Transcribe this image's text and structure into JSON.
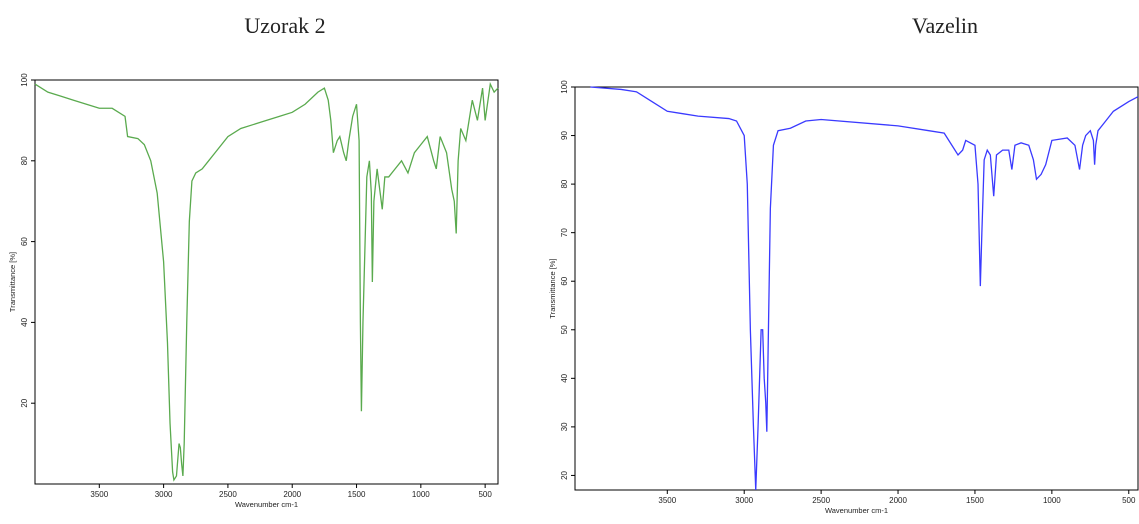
{
  "chart_data": [
    {
      "type": "line",
      "title": "Uzorak 2",
      "x_label": "Wavenumber cm-1",
      "y_label": "Transmittance [%]",
      "color": "#5aaa4e",
      "xlim": [
        4000,
        400
      ],
      "ylim": [
        0,
        100
      ],
      "xticks": [
        3500,
        3000,
        2500,
        2000,
        1500,
        1000,
        500
      ],
      "yticks": [
        20,
        40,
        60,
        80,
        100
      ],
      "x": [
        4000,
        3900,
        3800,
        3700,
        3600,
        3500,
        3400,
        3300,
        3280,
        3200,
        3150,
        3100,
        3050,
        3000,
        2970,
        2950,
        2930,
        2920,
        2900,
        2880,
        2870,
        2860,
        2850,
        2840,
        2820,
        2800,
        2780,
        2750,
        2700,
        2650,
        2600,
        2500,
        2400,
        2300,
        2200,
        2100,
        2000,
        1900,
        1800,
        1750,
        1720,
        1700,
        1680,
        1650,
        1630,
        1600,
        1580,
        1560,
        1530,
        1500,
        1480,
        1470,
        1462,
        1450,
        1420,
        1400,
        1385,
        1377,
        1365,
        1340,
        1300,
        1280,
        1250,
        1200,
        1150,
        1100,
        1050,
        1000,
        950,
        900,
        880,
        850,
        800,
        760,
        740,
        725,
        710,
        690,
        650,
        600,
        560,
        520,
        500,
        460,
        430,
        400
      ],
      "values": [
        99,
        97,
        96,
        95,
        94,
        93,
        93,
        91,
        86,
        85.5,
        84,
        80,
        72,
        55,
        35,
        15,
        3,
        1,
        2,
        10,
        9,
        5,
        2,
        10,
        40,
        65,
        75,
        77,
        78,
        80,
        82,
        86,
        88,
        89,
        90,
        91,
        92,
        94,
        97,
        98,
        95,
        90,
        82,
        85,
        86,
        82,
        80,
        85,
        91,
        94,
        85,
        40,
        18,
        40,
        76,
        80,
        72,
        50,
        70,
        78,
        68,
        76,
        76,
        78,
        80,
        77,
        82,
        84,
        86,
        80,
        78,
        86,
        82,
        73,
        70,
        62,
        80,
        88,
        85,
        95,
        90,
        98,
        90,
        99,
        97,
        98
      ]
    },
    {
      "type": "line",
      "title": "Vazelin",
      "x_label": "Wavenumber cm-1",
      "y_label": "Transmittance [%]",
      "color": "#3a3aff",
      "xlim": [
        4100,
        440
      ],
      "ylim": [
        17,
        100
      ],
      "xticks": [
        3500,
        3000,
        2500,
        2000,
        1500,
        1000,
        500
      ],
      "yticks": [
        20,
        30,
        40,
        50,
        60,
        70,
        80,
        90,
        100
      ],
      "x": [
        4000,
        3800,
        3700,
        3600,
        3500,
        3400,
        3300,
        3100,
        3050,
        3000,
        2980,
        2960,
        2940,
        2925,
        2910,
        2890,
        2880,
        2870,
        2860,
        2853,
        2845,
        2830,
        2810,
        2780,
        2700,
        2600,
        2500,
        2000,
        1800,
        1700,
        1650,
        1610,
        1580,
        1560,
        1500,
        1480,
        1465,
        1455,
        1440,
        1420,
        1400,
        1378,
        1360,
        1320,
        1280,
        1260,
        1240,
        1200,
        1150,
        1120,
        1100,
        1070,
        1040,
        1000,
        900,
        850,
        820,
        800,
        780,
        750,
        730,
        722,
        715,
        700,
        650,
        600,
        500,
        440
      ],
      "values": [
        100,
        99.5,
        99,
        97,
        95,
        94.5,
        94,
        93.5,
        93,
        90,
        80,
        50,
        30,
        17,
        30,
        50,
        50,
        40,
        35,
        29,
        45,
        75,
        88,
        91,
        91.5,
        93,
        93.3,
        92,
        91,
        90.5,
        88,
        86,
        87,
        89,
        88,
        80,
        59,
        70,
        85,
        87,
        86,
        77.5,
        86,
        87,
        87,
        83,
        88,
        88.5,
        88,
        85,
        81,
        82,
        84,
        89,
        89.5,
        88,
        83,
        88,
        90,
        91,
        89,
        84,
        88,
        91,
        93,
        95,
        97,
        98
      ]
    }
  ]
}
